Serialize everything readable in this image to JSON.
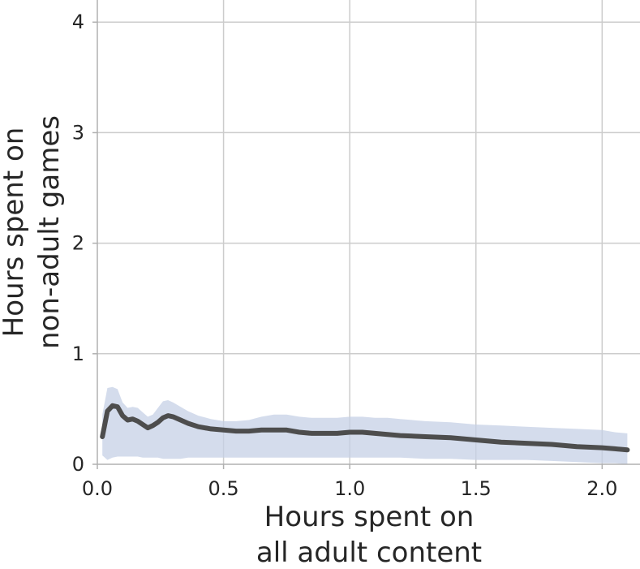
{
  "chart_data": {
    "type": "line",
    "xlabel_lines": [
      "Hours spent on",
      "all adult content"
    ],
    "ylabel_lines": [
      "Hours spent on",
      "non-adult games"
    ],
    "xlim": [
      0,
      2.15
    ],
    "ylim": [
      0,
      4.2
    ],
    "x_ticks": [
      0.0,
      0.5,
      1.0,
      1.5,
      2.0
    ],
    "x_tick_labels": [
      "0.0",
      "0.5",
      "1.0",
      "1.5",
      "2.0"
    ],
    "y_ticks": [
      0,
      1,
      2,
      3,
      4
    ],
    "y_tick_labels": [
      "0",
      "1",
      "2",
      "3",
      "4"
    ],
    "grid": true,
    "colors": {
      "line": "#4d4d4d",
      "band": "#c6d0e6",
      "grid": "#cccccc",
      "axis": "#b0b0b0"
    },
    "series": [
      {
        "x": [
          0.02,
          0.04,
          0.06,
          0.08,
          0.1,
          0.12,
          0.14,
          0.16,
          0.18,
          0.2,
          0.22,
          0.24,
          0.26,
          0.28,
          0.3,
          0.33,
          0.36,
          0.4,
          0.45,
          0.5,
          0.55,
          0.6,
          0.65,
          0.7,
          0.75,
          0.8,
          0.85,
          0.9,
          0.95,
          1.0,
          1.05,
          1.1,
          1.15,
          1.2,
          1.3,
          1.4,
          1.5,
          1.6,
          1.7,
          1.8,
          1.9,
          2.0,
          2.05,
          2.1
        ],
        "y": [
          0.25,
          0.48,
          0.53,
          0.52,
          0.44,
          0.4,
          0.41,
          0.39,
          0.36,
          0.33,
          0.35,
          0.38,
          0.42,
          0.44,
          0.43,
          0.4,
          0.37,
          0.34,
          0.32,
          0.31,
          0.3,
          0.3,
          0.31,
          0.31,
          0.31,
          0.29,
          0.28,
          0.28,
          0.28,
          0.29,
          0.29,
          0.28,
          0.27,
          0.26,
          0.25,
          0.24,
          0.22,
          0.2,
          0.19,
          0.18,
          0.16,
          0.15,
          0.14,
          0.13
        ],
        "lower": [
          0.08,
          0.04,
          0.06,
          0.07,
          0.07,
          0.07,
          0.07,
          0.07,
          0.06,
          0.06,
          0.06,
          0.06,
          0.05,
          0.05,
          0.05,
          0.05,
          0.06,
          0.06,
          0.06,
          0.06,
          0.06,
          0.06,
          0.06,
          0.06,
          0.06,
          0.06,
          0.06,
          0.06,
          0.06,
          0.06,
          0.06,
          0.06,
          0.06,
          0.06,
          0.05,
          0.05,
          0.04,
          0.04,
          0.04,
          0.03,
          0.02,
          0.01,
          0.01,
          0.0
        ],
        "upper": [
          0.45,
          0.69,
          0.7,
          0.68,
          0.56,
          0.51,
          0.52,
          0.51,
          0.47,
          0.43,
          0.45,
          0.51,
          0.57,
          0.58,
          0.56,
          0.52,
          0.48,
          0.44,
          0.41,
          0.39,
          0.39,
          0.4,
          0.43,
          0.45,
          0.45,
          0.43,
          0.42,
          0.42,
          0.42,
          0.43,
          0.43,
          0.42,
          0.42,
          0.41,
          0.39,
          0.38,
          0.36,
          0.35,
          0.34,
          0.33,
          0.32,
          0.31,
          0.29,
          0.28
        ]
      }
    ]
  }
}
